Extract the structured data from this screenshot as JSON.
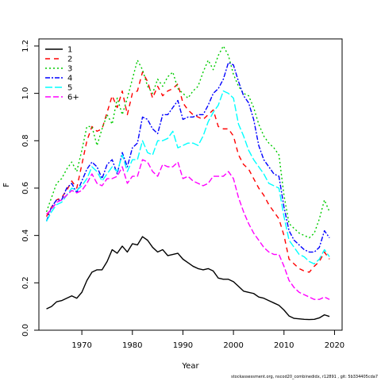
{
  "caption": "stockassessment.org,  nscod20_combinedidx,  r12891  ,  git: 5b334405cda7",
  "chart_data": {
    "type": "line",
    "title": "",
    "xlabel": "Year",
    "ylabel": "F",
    "xlim": [
      1961.5,
      2021.5
    ],
    "ylim": [
      0,
      1.23
    ],
    "x_ticks": [
      1970,
      1980,
      1990,
      2000,
      2010,
      2020
    ],
    "y_ticks": [
      0.0,
      0.2,
      0.4,
      0.6,
      0.8,
      1.0,
      1.2
    ],
    "grid": false,
    "legend_position": "top-left",
    "years": [
      1963,
      1964,
      1965,
      1966,
      1967,
      1968,
      1969,
      1970,
      1971,
      1972,
      1973,
      1974,
      1975,
      1976,
      1977,
      1978,
      1979,
      1980,
      1981,
      1982,
      1983,
      1984,
      1985,
      1986,
      1987,
      1988,
      1989,
      1990,
      1991,
      1992,
      1993,
      1994,
      1995,
      1996,
      1997,
      1998,
      1999,
      2000,
      2001,
      2002,
      2003,
      2004,
      2005,
      2006,
      2007,
      2008,
      2009,
      2010,
      2011,
      2012,
      2013,
      2014,
      2015,
      2016,
      2017,
      2018,
      2019
    ],
    "series": [
      {
        "name": "1",
        "color": "#000000",
        "dash": "solid",
        "values": [
          0.09,
          0.1,
          0.12,
          0.125,
          0.135,
          0.145,
          0.135,
          0.16,
          0.21,
          0.245,
          0.255,
          0.255,
          0.29,
          0.34,
          0.325,
          0.355,
          0.33,
          0.365,
          0.36,
          0.395,
          0.38,
          0.35,
          0.33,
          0.34,
          0.315,
          0.32,
          0.325,
          0.3,
          0.285,
          0.27,
          0.26,
          0.255,
          0.26,
          0.25,
          0.22,
          0.215,
          0.215,
          0.205,
          0.185,
          0.165,
          0.16,
          0.155,
          0.14,
          0.135,
          0.125,
          0.115,
          0.105,
          0.085,
          0.06,
          0.05,
          0.048,
          0.046,
          0.045,
          0.046,
          0.052,
          0.065,
          0.058
        ]
      },
      {
        "name": "2",
        "color": "#ff0000",
        "dash": "6,5",
        "values": [
          0.48,
          0.52,
          0.55,
          0.56,
          0.59,
          0.63,
          0.6,
          0.7,
          0.8,
          0.86,
          0.84,
          0.85,
          0.92,
          0.99,
          0.94,
          1.01,
          0.91,
          1.0,
          1.01,
          1.09,
          1.05,
          0.98,
          1.03,
          0.99,
          1.01,
          1.02,
          1.04,
          0.96,
          0.93,
          0.91,
          0.9,
          0.89,
          0.91,
          0.93,
          0.86,
          0.85,
          0.85,
          0.82,
          0.74,
          0.7,
          0.68,
          0.64,
          0.6,
          0.57,
          0.53,
          0.5,
          0.47,
          0.4,
          0.3,
          0.28,
          0.26,
          0.25,
          0.245,
          0.27,
          0.29,
          0.33,
          0.3
        ]
      },
      {
        "name": "3",
        "color": "#00cc00",
        "dash": "2,3",
        "values": [
          0.5,
          0.56,
          0.62,
          0.64,
          0.68,
          0.71,
          0.67,
          0.76,
          0.86,
          0.86,
          0.78,
          0.85,
          0.91,
          0.87,
          0.98,
          0.91,
          0.98,
          1.06,
          1.14,
          1.1,
          1.03,
          1.0,
          1.06,
          1.03,
          1.07,
          1.09,
          1.02,
          1.0,
          0.98,
          1.01,
          1.03,
          1.09,
          1.14,
          1.1,
          1.16,
          1.2,
          1.16,
          1.08,
          1.03,
          1.0,
          0.99,
          0.94,
          0.87,
          0.82,
          0.79,
          0.77,
          0.74,
          0.57,
          0.45,
          0.43,
          0.41,
          0.4,
          0.39,
          0.41,
          0.47,
          0.55,
          0.5
        ]
      },
      {
        "name": "4",
        "color": "#0000ff",
        "dash": "6,2,2,2",
        "values": [
          0.46,
          0.52,
          0.55,
          0.55,
          0.6,
          0.62,
          0.58,
          0.63,
          0.68,
          0.71,
          0.69,
          0.64,
          0.7,
          0.72,
          0.66,
          0.75,
          0.69,
          0.77,
          0.79,
          0.9,
          0.89,
          0.85,
          0.83,
          0.91,
          0.91,
          0.94,
          0.97,
          0.89,
          0.9,
          0.9,
          0.91,
          0.91,
          0.95,
          1.0,
          1.02,
          1.06,
          1.13,
          1.12,
          1.05,
          0.99,
          0.96,
          0.89,
          0.78,
          0.72,
          0.69,
          0.66,
          0.65,
          0.52,
          0.42,
          0.38,
          0.36,
          0.34,
          0.33,
          0.33,
          0.35,
          0.42,
          0.39
        ]
      },
      {
        "name": "5",
        "color": "#00ffff",
        "dash": "9,3",
        "values": [
          0.46,
          0.5,
          0.53,
          0.54,
          0.57,
          0.6,
          0.59,
          0.61,
          0.64,
          0.69,
          0.67,
          0.63,
          0.66,
          0.69,
          0.67,
          0.74,
          0.67,
          0.72,
          0.72,
          0.8,
          0.75,
          0.74,
          0.8,
          0.8,
          0.81,
          0.84,
          0.77,
          0.78,
          0.79,
          0.79,
          0.78,
          0.82,
          0.88,
          0.92,
          0.95,
          1.01,
          1.0,
          0.98,
          0.87,
          0.82,
          0.76,
          0.72,
          0.69,
          0.66,
          0.62,
          0.61,
          0.6,
          0.48,
          0.38,
          0.35,
          0.32,
          0.31,
          0.29,
          0.28,
          0.3,
          0.34,
          0.31
        ]
      },
      {
        "name": "6+",
        "color": "#ff00ff",
        "dash": "7,3",
        "values": [
          0.49,
          0.51,
          0.54,
          0.55,
          0.57,
          0.59,
          0.58,
          0.59,
          0.62,
          0.66,
          0.62,
          0.61,
          0.64,
          0.64,
          0.65,
          0.69,
          0.62,
          0.65,
          0.65,
          0.72,
          0.71,
          0.67,
          0.65,
          0.7,
          0.69,
          0.69,
          0.71,
          0.64,
          0.65,
          0.63,
          0.62,
          0.61,
          0.62,
          0.65,
          0.65,
          0.65,
          0.67,
          0.64,
          0.56,
          0.5,
          0.45,
          0.41,
          0.38,
          0.35,
          0.33,
          0.32,
          0.32,
          0.27,
          0.21,
          0.18,
          0.16,
          0.15,
          0.14,
          0.13,
          0.13,
          0.14,
          0.13
        ]
      }
    ]
  }
}
